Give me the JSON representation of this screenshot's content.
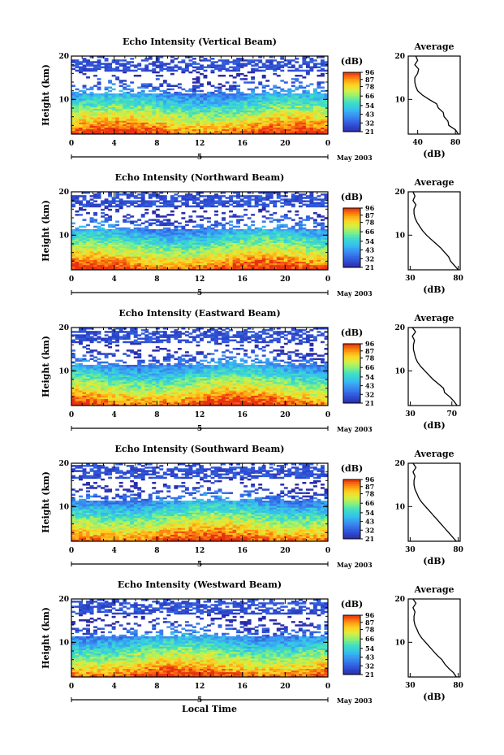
{
  "figure": {
    "bottom_label": "Local Time",
    "date_label": "May 2003"
  },
  "chart_data": [
    {
      "type": "heatmap",
      "title": "Echo Intensity (Vertical Beam)",
      "ylabel": "Height (km)",
      "x_ticks": [
        "0",
        "4",
        "8",
        "12",
        "16",
        "20",
        "0"
      ],
      "x_range": [
        0,
        24
      ],
      "y_ticks": [
        "20",
        "10"
      ],
      "y_range": [
        2,
        20
      ],
      "day_marker": "5",
      "colorbar": {
        "unit": "(dB)",
        "ticks": [
          "96",
          "87",
          "78",
          "66",
          "54",
          "43",
          "32",
          "21"
        ],
        "range": [
          21,
          96
        ]
      },
      "avg_profile": {
        "title": "Average",
        "xlabel": "(dB)",
        "x_ticks": [
          "40",
          "80"
        ],
        "x_range": [
          30,
          85
        ],
        "y_ticks": [
          "20",
          "10"
        ],
        "height": [
          2,
          3,
          4,
          5,
          6,
          7,
          8,
          9,
          10,
          11,
          12,
          13,
          14,
          15,
          16,
          17,
          18,
          19,
          20
        ],
        "value": [
          83,
          80,
          73,
          72,
          68,
          67,
          62,
          60,
          52,
          45,
          40,
          38,
          37,
          37,
          40,
          41,
          37,
          40,
          38
        ]
      }
    },
    {
      "type": "heatmap",
      "title": "Echo Intensity (Northward Beam)",
      "ylabel": "Height (km)",
      "x_ticks": [
        "0",
        "4",
        "8",
        "12",
        "16",
        "20",
        "0"
      ],
      "x_range": [
        0,
        24
      ],
      "y_ticks": [
        "20",
        "10"
      ],
      "y_range": [
        2,
        20
      ],
      "day_marker": "5",
      "colorbar": {
        "unit": "(dB)",
        "ticks": [
          "96",
          "87",
          "78",
          "66",
          "54",
          "43",
          "32",
          "21"
        ],
        "range": [
          21,
          96
        ]
      },
      "avg_profile": {
        "title": "Average",
        "xlabel": "(dB)",
        "x_ticks": [
          "30",
          "80"
        ],
        "x_range": [
          28,
          82
        ],
        "y_ticks": [
          "20",
          "10"
        ],
        "height": [
          2,
          3,
          4,
          5,
          6,
          7,
          8,
          9,
          10,
          11,
          12,
          13,
          14,
          15,
          16,
          17,
          18,
          19,
          20
        ],
        "value": [
          80,
          76,
          72,
          70,
          66,
          62,
          57,
          52,
          47,
          43,
          40,
          37,
          35,
          34,
          34,
          36,
          33,
          35,
          33
        ]
      }
    },
    {
      "type": "heatmap",
      "title": "Echo Intensity (Eastward Beam)",
      "ylabel": "Height (km)",
      "x_ticks": [
        "0",
        "4",
        "8",
        "12",
        "16",
        "20",
        "0"
      ],
      "x_range": [
        0,
        24
      ],
      "y_ticks": [
        "20",
        "10"
      ],
      "y_range": [
        2,
        20
      ],
      "day_marker": "5",
      "colorbar": {
        "unit": "(dB)",
        "ticks": [
          "96",
          "87",
          "78",
          "66",
          "54",
          "43",
          "32",
          "21"
        ],
        "range": [
          21,
          96
        ]
      },
      "avg_profile": {
        "title": "Average",
        "xlabel": "(dB)",
        "x_ticks": [
          "30",
          "70"
        ],
        "x_range": [
          28,
          78
        ],
        "y_ticks": [
          "20",
          "10"
        ],
        "height": [
          2,
          3,
          4,
          5,
          6,
          7,
          8,
          9,
          10,
          11,
          12,
          13,
          14,
          15,
          16,
          17,
          18,
          19,
          20
        ],
        "value": [
          75,
          72,
          68,
          63,
          62,
          57,
          52,
          48,
          44,
          40,
          37,
          35,
          34,
          33,
          33,
          34,
          32,
          35,
          32
        ]
      }
    },
    {
      "type": "heatmap",
      "title": "Echo Intensity (Southward Beam)",
      "ylabel": "Height (km)",
      "x_ticks": [
        "0",
        "4",
        "8",
        "12",
        "16",
        "20",
        "0"
      ],
      "x_range": [
        0,
        24
      ],
      "y_ticks": [
        "20",
        "10"
      ],
      "y_range": [
        2,
        20
      ],
      "day_marker": "5",
      "colorbar": {
        "unit": "(dB)",
        "ticks": [
          "96",
          "87",
          "78",
          "66",
          "54",
          "43",
          "32",
          "21"
        ],
        "range": [
          21,
          96
        ]
      },
      "avg_profile": {
        "title": "Average",
        "xlabel": "(dB)",
        "x_ticks": [
          "30",
          "80"
        ],
        "x_range": [
          28,
          82
        ],
        "y_ticks": [
          "20",
          "10"
        ],
        "height": [
          2,
          3,
          4,
          5,
          6,
          7,
          8,
          9,
          10,
          11,
          12,
          13,
          14,
          15,
          16,
          17,
          18,
          19,
          20
        ],
        "value": [
          78,
          74,
          70,
          66,
          62,
          58,
          54,
          50,
          46,
          42,
          39,
          37,
          35,
          34,
          34,
          35,
          33,
          36,
          33
        ]
      }
    },
    {
      "type": "heatmap",
      "title": "Echo Intensity (Westward Beam)",
      "ylabel": "Height (km)",
      "x_ticks": [
        "0",
        "4",
        "8",
        "12",
        "16",
        "20",
        "0"
      ],
      "x_range": [
        0,
        24
      ],
      "y_ticks": [
        "20",
        "10"
      ],
      "y_range": [
        2,
        20
      ],
      "day_marker": "5",
      "colorbar": {
        "unit": "(dB)",
        "ticks": [
          "96",
          "87",
          "78",
          "66",
          "54",
          "43",
          "32",
          "21"
        ],
        "range": [
          21,
          96
        ]
      },
      "avg_profile": {
        "title": "Average",
        "xlabel": "(dB)",
        "x_ticks": [
          "30",
          "80"
        ],
        "x_range": [
          28,
          82
        ],
        "y_ticks": [
          "20",
          "10"
        ],
        "height": [
          2,
          3,
          4,
          5,
          6,
          7,
          8,
          9,
          10,
          11,
          12,
          13,
          14,
          15,
          16,
          17,
          18,
          19,
          20
        ],
        "value": [
          78,
          75,
          70,
          66,
          63,
          58,
          54,
          50,
          46,
          42,
          39,
          37,
          35,
          34,
          34,
          35,
          33,
          36,
          33
        ]
      }
    }
  ]
}
